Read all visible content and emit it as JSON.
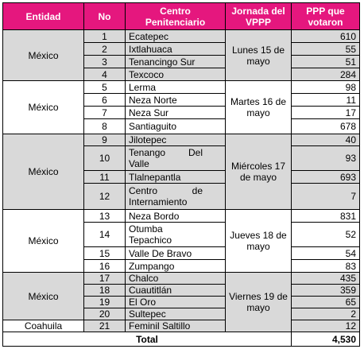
{
  "table": {
    "header": [
      "Entidad",
      "No",
      "Centro Penitenciario",
      "Jornada del VPPP",
      "PPP que votaron"
    ],
    "entidades": [
      "México",
      "México",
      "México",
      "México",
      "México",
      "Coahuila"
    ],
    "jornadas": [
      "Lunes 15 de mayo",
      "Martes 16 de mayo",
      "Miércoles 17 de mayo",
      "Jueves 18 de mayo",
      "Viernes 19 de mayo"
    ],
    "rows": [
      [
        1,
        "Ecatepec",
        610
      ],
      [
        2,
        "Ixtlahuaca",
        55
      ],
      [
        3,
        "Tenancingo Sur",
        51
      ],
      [
        4,
        "Texcoco",
        284
      ],
      [
        5,
        "Lerma",
        98
      ],
      [
        6,
        "Neza Norte",
        11
      ],
      [
        7,
        "Neza Sur",
        17
      ],
      [
        8,
        "Santiaguito",
        678
      ],
      [
        9,
        "Jilotepec",
        40
      ],
      [
        10,
        "Tenango Del Valle",
        93
      ],
      [
        11,
        "Tlalnepantla",
        693
      ],
      [
        12,
        "Centro de Internamiento",
        7
      ],
      [
        13,
        "Neza Bordo",
        831
      ],
      [
        14,
        "Otumba Tepachico",
        52
      ],
      [
        15,
        "Valle De Bravo",
        54
      ],
      [
        16,
        "Zumpango",
        83
      ],
      [
        17,
        "Chalco",
        435
      ],
      [
        18,
        "Cuautitlán",
        359
      ],
      [
        19,
        "El Oro",
        65
      ],
      [
        20,
        "Sultepec",
        2
      ],
      [
        21,
        "Feminil Saltillo",
        12
      ]
    ],
    "total": {
      "label": "Total",
      "value": "4,530"
    }
  }
}
